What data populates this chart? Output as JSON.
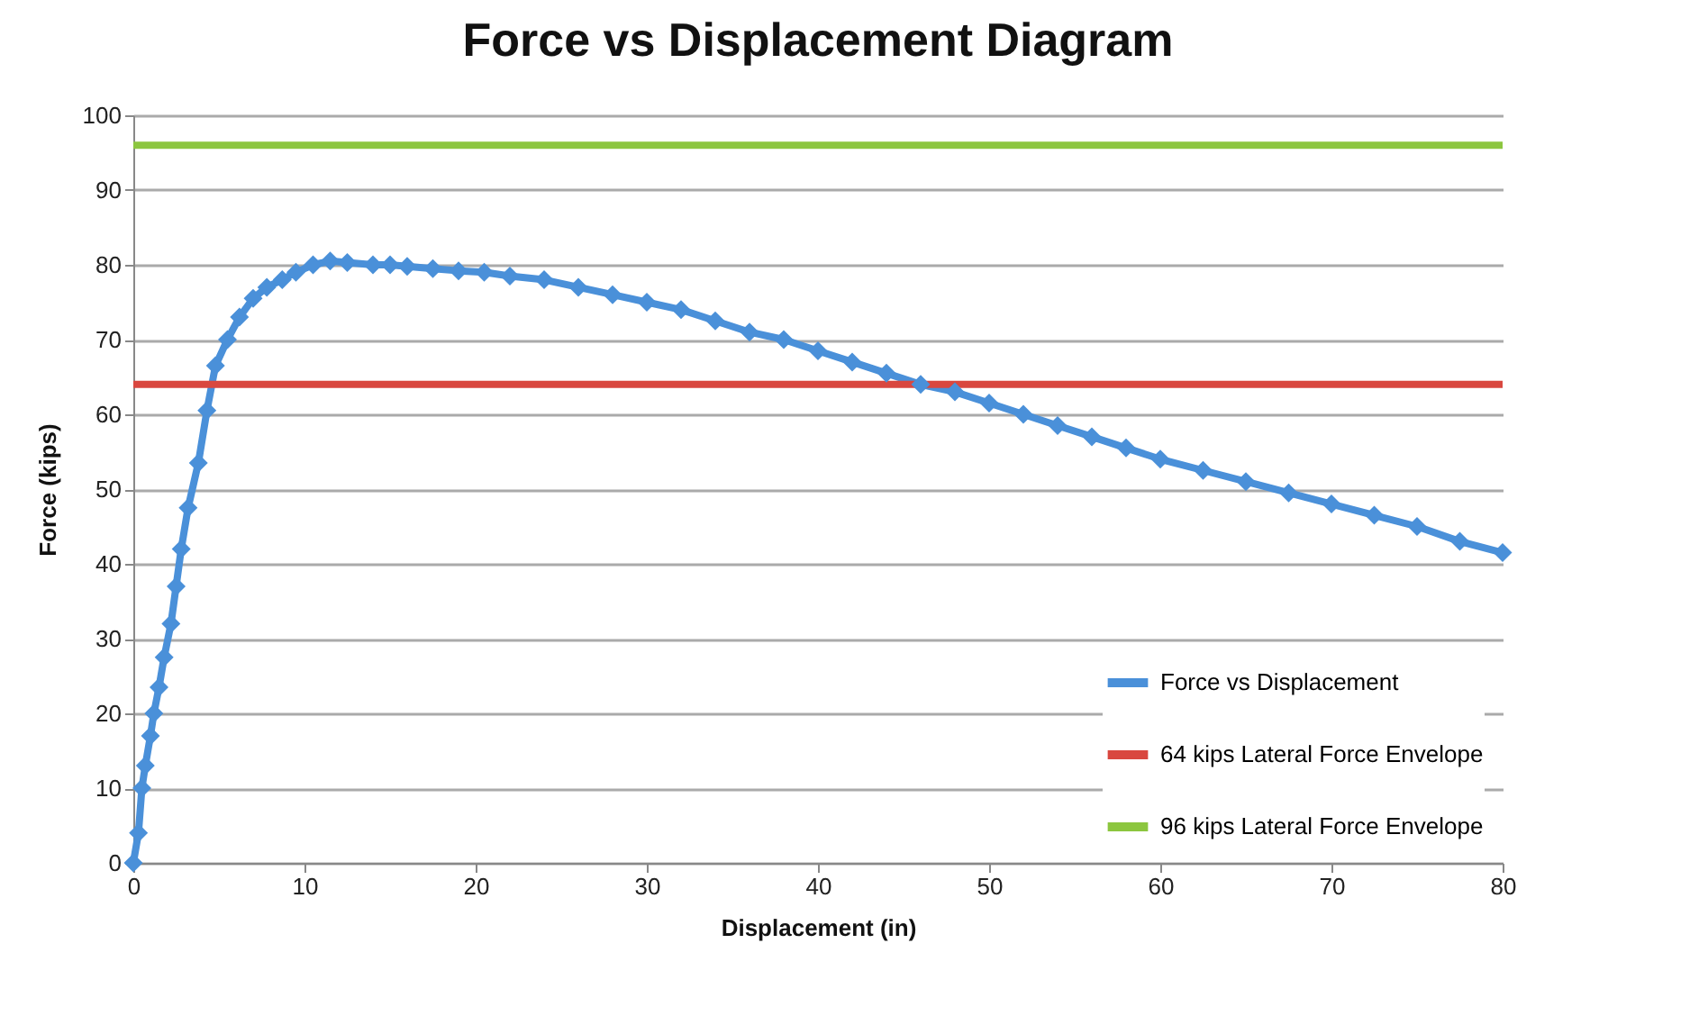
{
  "chart_data": {
    "type": "line",
    "title": "Force vs Displacement Diagram",
    "xlabel": "Displacement (in)",
    "ylabel": "Force (kips)",
    "xlim": [
      0,
      80
    ],
    "xticks": [
      0,
      10,
      20,
      30,
      40,
      50,
      60,
      70,
      80
    ],
    "ylim": [
      0,
      100
    ],
    "yticks": [
      0,
      10,
      20,
      30,
      40,
      50,
      60,
      70,
      80,
      90,
      100
    ],
    "grid": "y",
    "legend": "bottom right",
    "marker": "diamond",
    "line_style": "solid",
    "series": [
      {
        "name": "Force vs Displacement",
        "color": "#4a90d9",
        "x": [
          0,
          0.3,
          0.5,
          0.7,
          1,
          1.2,
          1.5,
          1.8,
          2.2,
          2.5,
          2.8,
          3.2,
          3.8,
          4.3,
          4.8,
          5.5,
          6.2,
          7,
          7.8,
          8.7,
          9.5,
          10.5,
          11.5,
          12.5,
          14,
          15,
          16,
          17.5,
          19,
          20.5,
          22,
          24,
          26,
          28,
          30,
          32,
          34,
          36,
          38,
          40,
          42,
          44,
          46,
          48,
          50,
          52,
          54,
          56,
          58,
          60,
          62.5,
          65,
          67.5,
          70,
          72.5,
          75,
          77.5,
          80
        ],
        "values": [
          0,
          4,
          10,
          13,
          17,
          20,
          23.5,
          27.5,
          32,
          37,
          42,
          47.5,
          53.5,
          60.5,
          66.5,
          70,
          73,
          75.5,
          77,
          78,
          79,
          80,
          80.5,
          80.3,
          80,
          80,
          79.8,
          79.5,
          79.2,
          79,
          78.5,
          78,
          77,
          76,
          75,
          74,
          72.5,
          71,
          70,
          68.5,
          67,
          65.5,
          64,
          63,
          61.5,
          60,
          58.5,
          57,
          55.5,
          54,
          52.5,
          51,
          49.5,
          48,
          46.5,
          45,
          43,
          41.5
        ]
      },
      {
        "name": "64 kips Lateral Force Envelope",
        "color": "#d9473f",
        "marker": "none",
        "x": [
          0,
          80
        ],
        "values": [
          64,
          64
        ]
      },
      {
        "name": "96 kips Lateral Force Envelope",
        "color": "#8cc63f",
        "marker": "none",
        "x": [
          0,
          80
        ],
        "values": [
          96,
          96
        ]
      }
    ]
  }
}
